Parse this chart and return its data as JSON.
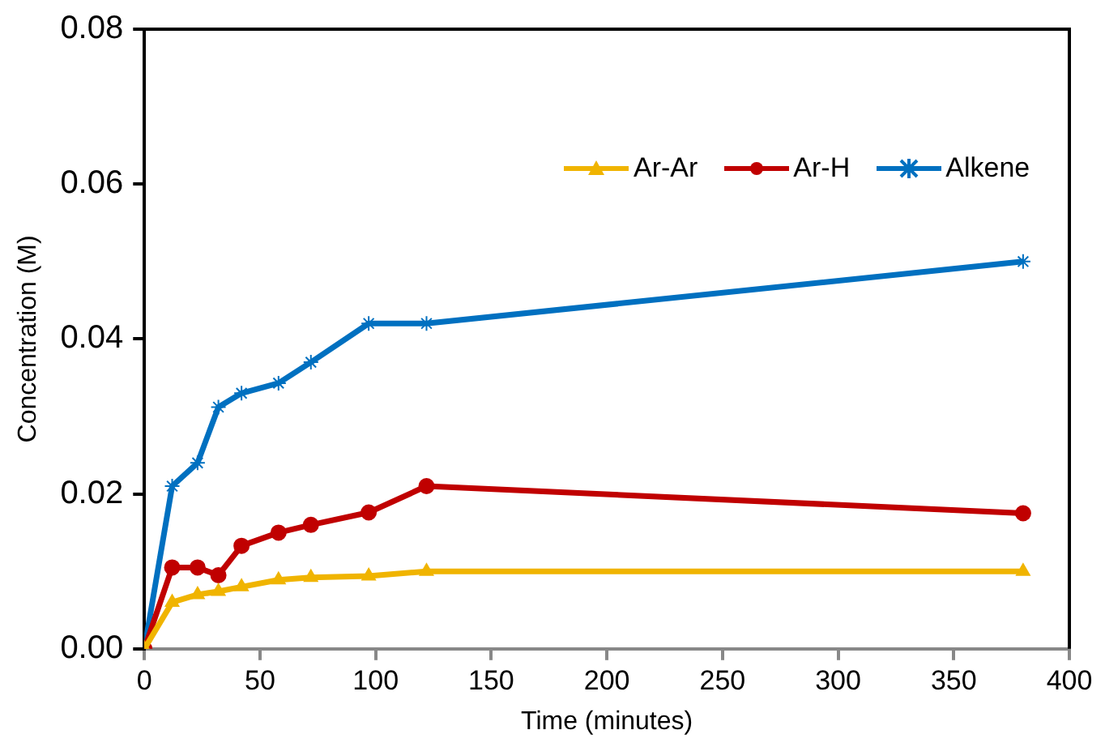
{
  "chart_data": {
    "type": "line",
    "xlabel": "Time (minutes)",
    "ylabel": "Concentration (M)",
    "xlim": [
      0,
      400
    ],
    "xticks": [
      0,
      50,
      100,
      150,
      200,
      250,
      300,
      350,
      400
    ],
    "ylim": [
      0,
      0.08
    ],
    "yticks": [
      {
        "value": 0,
        "label": "0.00"
      },
      {
        "value": 0.02,
        "label": "0.02"
      },
      {
        "value": 0.04,
        "label": "0.04"
      },
      {
        "value": 0.06,
        "label": "0.06"
      },
      {
        "value": 0.08,
        "label": "0.08"
      }
    ],
    "grid": false,
    "legend": "top right",
    "line_style": "solid",
    "series": [
      {
        "name": "Ar-Ar",
        "color": "#f0b400",
        "marker": "triangle",
        "x": [
          0,
          12,
          23,
          32,
          42,
          58,
          72,
          97,
          122,
          380
        ],
        "values": [
          0,
          0.006,
          0.007,
          0.0074,
          0.008,
          0.0089,
          0.0092,
          0.0094,
          0.01,
          0.01
        ]
      },
      {
        "name": "Ar-H",
        "color": "#c00000",
        "marker": "circle",
        "x": [
          0,
          12,
          23,
          32,
          42,
          58,
          72,
          97,
          122,
          380
        ],
        "values": [
          0,
          0.0105,
          0.0105,
          0.0095,
          0.0133,
          0.015,
          0.016,
          0.0176,
          0.021,
          0.0175
        ]
      },
      {
        "name": "Alkene",
        "color": "#0070c0",
        "marker": "cross",
        "x": [
          0,
          12,
          23,
          32,
          42,
          58,
          72,
          97,
          122,
          380
        ],
        "values": [
          0,
          0.021,
          0.024,
          0.0312,
          0.033,
          0.0343,
          0.037,
          0.042,
          0.042,
          0.05
        ]
      }
    ]
  }
}
